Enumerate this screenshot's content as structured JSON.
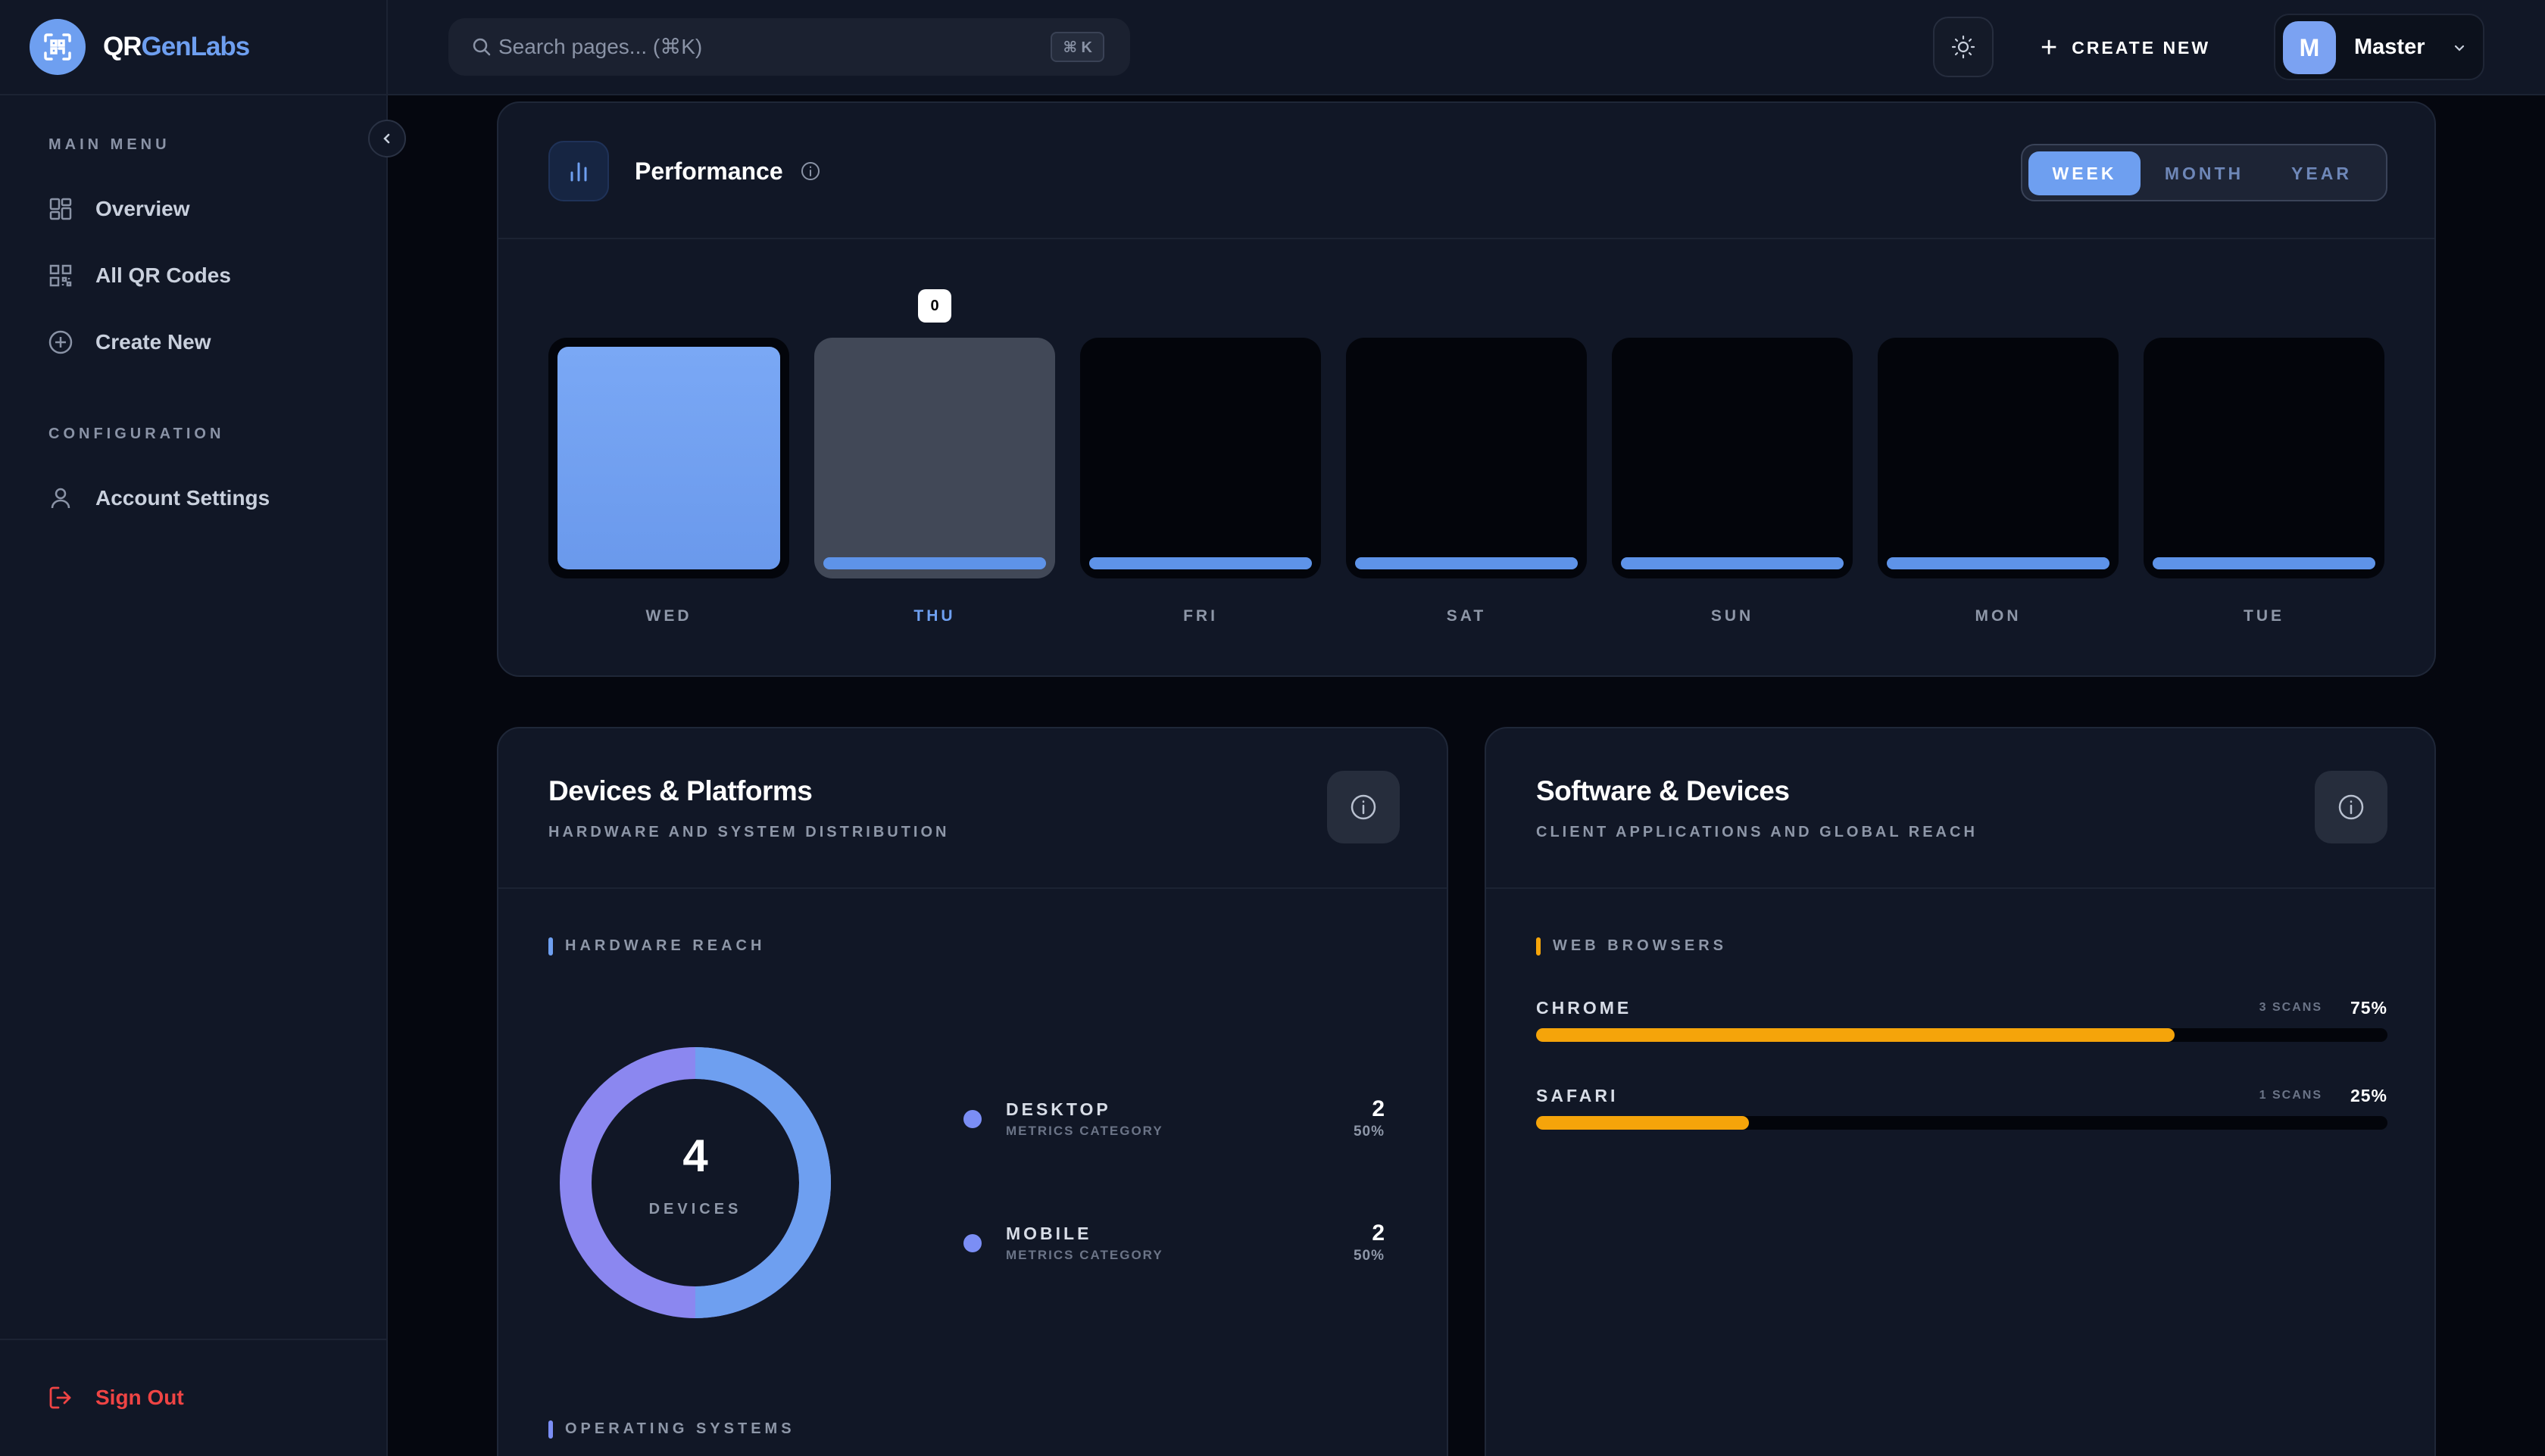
{
  "brand": {
    "name_a": "QR",
    "name_b": "GenLabs"
  },
  "sidebar": {
    "main_menu_label": "MAIN MENU",
    "main_items": [
      {
        "label": "Overview",
        "icon": "grid-icon"
      },
      {
        "label": "All QR Codes",
        "icon": "qr-icon"
      },
      {
        "label": "Create New",
        "icon": "plus-circle-icon"
      }
    ],
    "config_label": "CONFIGURATION",
    "config_items": [
      {
        "label": "Account Settings",
        "icon": "user-icon"
      }
    ],
    "signout_label": "Sign Out"
  },
  "topbar": {
    "search_placeholder": "Search pages... (⌘K)",
    "search_shortcut": "⌘ K",
    "create_label": "CREATE NEW",
    "user_initial": "M",
    "user_name": "Master"
  },
  "performance": {
    "title": "Performance",
    "tabs": [
      "WEEK",
      "MONTH",
      "YEAR"
    ],
    "active_tab": "WEEK",
    "tooltip_value": "0"
  },
  "chart_data": {
    "type": "bar",
    "categories": [
      "WED",
      "THU",
      "FRI",
      "SAT",
      "SUN",
      "MON",
      "TUE"
    ],
    "values": [
      4,
      0,
      0,
      0,
      0,
      0,
      0
    ],
    "highlighted_category": "THU"
  },
  "devices": {
    "title": "Devices & Platforms",
    "subtitle": "HARDWARE AND SYSTEM DISTRIBUTION",
    "hardware_label": "HARDWARE REACH",
    "total": "4",
    "total_caption": "DEVICES",
    "items": [
      {
        "name": "DESKTOP",
        "category": "METRICS CATEGORY",
        "value": "2",
        "percent": "50%"
      },
      {
        "name": "MOBILE",
        "category": "METRICS CATEGORY",
        "value": "2",
        "percent": "50%"
      }
    ],
    "os_label": "OPERATING SYSTEMS"
  },
  "software": {
    "title": "Software & Devices",
    "subtitle": "CLIENT APPLICATIONS AND GLOBAL REACH",
    "browsers_label": "WEB BROWSERS",
    "browsers": [
      {
        "name": "CHROME",
        "scans": "3 SCANS",
        "percent": "75%",
        "share": 0.75
      },
      {
        "name": "SAFARI",
        "scans": "1 SCANS",
        "percent": "25%",
        "share": 0.25
      }
    ]
  },
  "colors": {
    "accent": "#6e9ff0",
    "browser_bar": "#f5a40a",
    "danger": "#ef4444",
    "donut_desktop": "#6e9ff0",
    "donut_mobile": "#8b87f0"
  }
}
